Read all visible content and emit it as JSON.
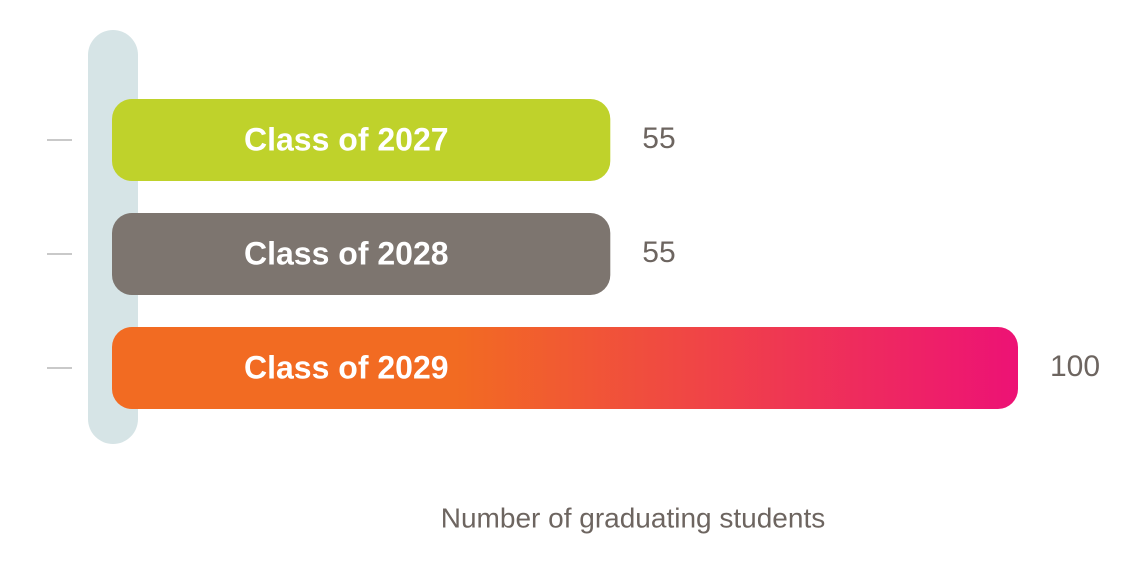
{
  "chart_data": {
    "type": "hbar",
    "x_label": "Number of graduating students",
    "categories": [
      "Class of 2027",
      "Class of 2028",
      "Class of 2029"
    ],
    "values": [
      55,
      55,
      100
    ],
    "colors": [
      "#bfd22b",
      "#7d756f",
      [
        "#f26b22",
        "#ed1275"
      ]
    ],
    "xlim": [
      0,
      100
    ]
  }
}
